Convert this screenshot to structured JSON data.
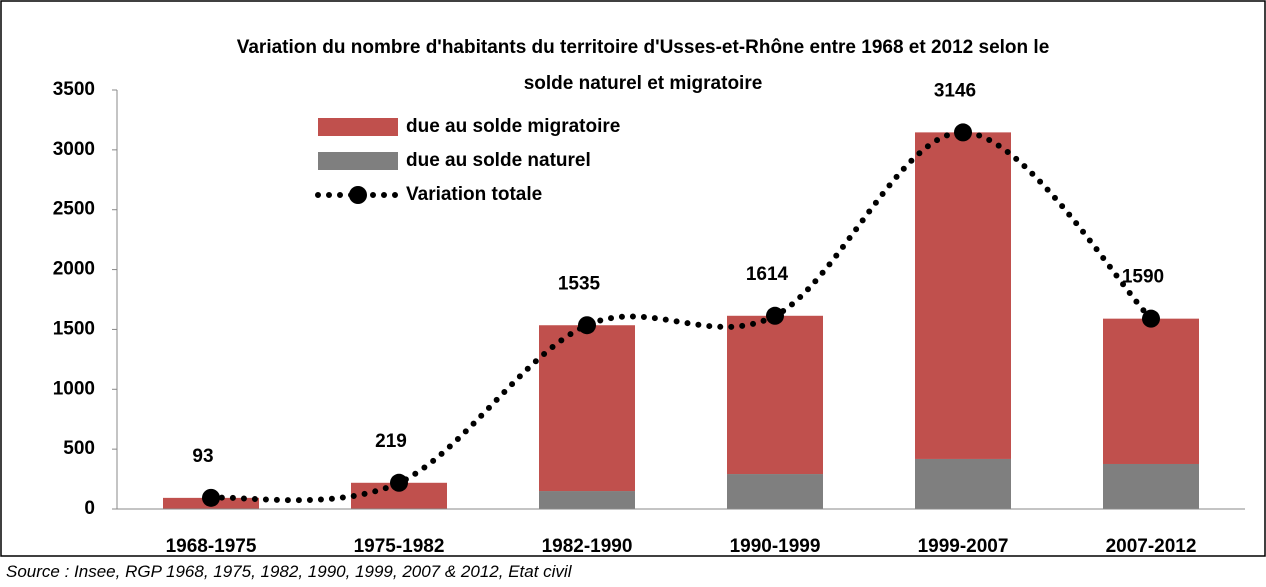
{
  "chart_data": {
    "type": "stacked_bar_line",
    "title": "Variation du nombre d'habitants du territoire d'Usses-et-Rhône entre 1968 et 2012 selon le solde naturel et migratoire",
    "categories": [
      "1968-1975",
      "1975-1982",
      "1982-1990",
      "1990-1999",
      "1999-2007",
      "2007-2012"
    ],
    "series": [
      {
        "name": "due au solde migratoire",
        "color": "#c0504d",
        "type": "bar",
        "values": [
          93,
          219,
          1385,
          1322,
          2728,
          1214
        ]
      },
      {
        "name": "due au solde naturel",
        "color": "#7f7f7f",
        "type": "bar",
        "values": [
          0,
          0,
          150,
          292,
          418,
          376
        ]
      },
      {
        "name": "Variation totale",
        "color": "#000000",
        "type": "line",
        "values": [
          93,
          219,
          1535,
          1614,
          3146,
          1590
        ]
      }
    ],
    "ylim": [
      0,
      3500
    ],
    "yticks": [
      0,
      500,
      1000,
      1500,
      2000,
      2500,
      3000,
      3500
    ],
    "grid": false,
    "legend": "top-left",
    "source": "Source : Insee, RGP 1968, 1975, 1982, 1990, 1999, 2007 & 2012, Etat civil"
  }
}
